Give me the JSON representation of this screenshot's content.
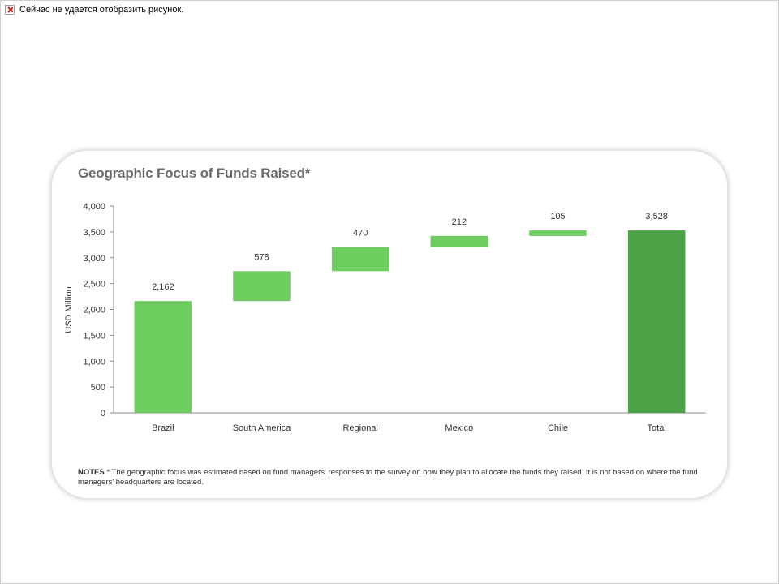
{
  "message": {
    "icon": "broken-image-icon",
    "text": "Сейчас не удается отобразить рисунок."
  },
  "notes": {
    "label": "NOTES",
    "text": " * The geographic focus was estimated based on fund managers' responses to the survey on how they plan to allocate the funds they raised. It is not based on where the fund managers' headquarters are located."
  },
  "colors": {
    "bar": "#6dcd5f",
    "total": "#4ca345",
    "axis": "#8a8a8a",
    "title": "#6a6a6a"
  },
  "chart_data": {
    "type": "bar",
    "subtype": "waterfall",
    "title": "Geographic Focus of Funds Raised*",
    "xlabel": "",
    "ylabel": "USD Million",
    "ylim": [
      0,
      4000
    ],
    "yticks": [
      0,
      500,
      1000,
      1500,
      2000,
      2500,
      3000,
      3500,
      4000
    ],
    "ytick_labels": [
      "0",
      "500",
      "1,000",
      "1,500",
      "2,000",
      "2,500",
      "3,000",
      "3,500",
      "4,000"
    ],
    "grid": false,
    "categories": [
      "Brazil",
      "South America",
      "Regional",
      "Mexico",
      "Chile",
      "Total"
    ],
    "values": [
      2162,
      578,
      470,
      212,
      105,
      3528
    ],
    "data_labels": [
      "2,162",
      "578",
      "470",
      "212",
      "105",
      "3,528"
    ]
  }
}
